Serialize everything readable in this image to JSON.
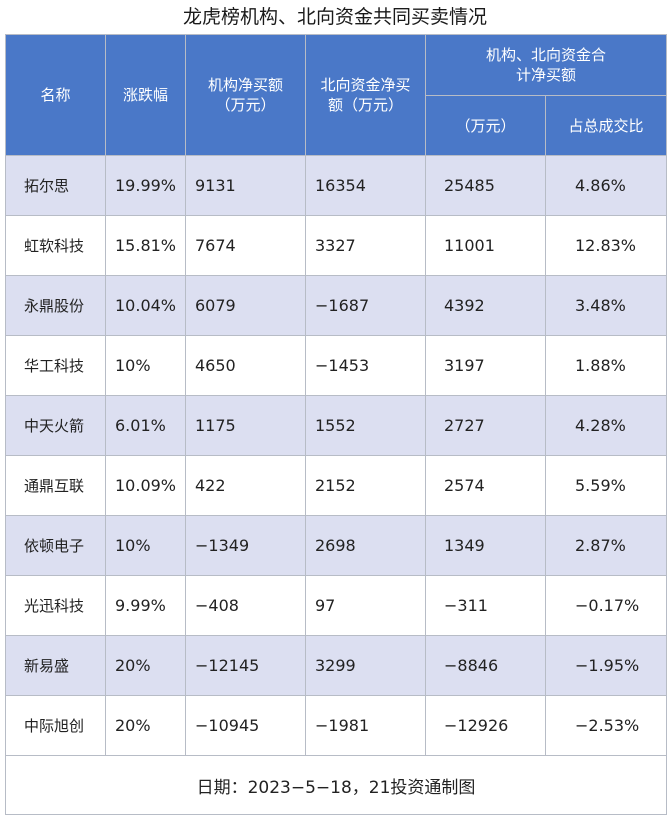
{
  "title": "龙虎榜机构、北向资金共同买卖情况",
  "headers": {
    "name": "名称",
    "change": "涨跌幅",
    "inst": "机构净买额（万元）",
    "north": "北向资金净买额（万元）",
    "combined_group": "机构、北向资金合计净买额",
    "combined_amount": "（万元）",
    "combined_ratio": "占总成交比"
  },
  "rows": [
    {
      "name": "拓尔思",
      "change": "19.99%",
      "inst": "9131",
      "north": "16354",
      "total": "25485",
      "ratio": "4.86%"
    },
    {
      "name": "虹软科技",
      "change": "15.81%",
      "inst": "7674",
      "north": "3327",
      "total": "11001",
      "ratio": "12.83%"
    },
    {
      "name": "永鼎股份",
      "change": "10.04%",
      "inst": "6079",
      "north": "−1687",
      "total": "4392",
      "ratio": "3.48%"
    },
    {
      "name": "华工科技",
      "change": "10%",
      "inst": "4650",
      "north": "−1453",
      "total": "3197",
      "ratio": "1.88%"
    },
    {
      "name": "中天火箭",
      "change": "6.01%",
      "inst": "1175",
      "north": "1552",
      "total": "2727",
      "ratio": "4.28%"
    },
    {
      "name": "通鼎互联",
      "change": "10.09%",
      "inst": "422",
      "north": "2152",
      "total": "2574",
      "ratio": "5.59%"
    },
    {
      "name": "依顿电子",
      "change": "10%",
      "inst": "−1349",
      "north": "2698",
      "total": "1349",
      "ratio": "2.87%"
    },
    {
      "name": "光迅科技",
      "change": "9.99%",
      "inst": "−408",
      "north": "97",
      "total": "−311",
      "ratio": "−0.17%"
    },
    {
      "name": "新易盛",
      "change": "20%",
      "inst": "−12145",
      "north": "3299",
      "total": "−8846",
      "ratio": "−1.95%"
    },
    {
      "name": "中际旭创",
      "change": "20%",
      "inst": "−10945",
      "north": "−1981",
      "total": "−12926",
      "ratio": "−2.53%"
    }
  ],
  "footer": "日期：2023−5−18，21投资通制图",
  "colors": {
    "header_bg": "#4a78c8",
    "stripe": "#dcdff1",
    "border": "#b7bcc6"
  }
}
